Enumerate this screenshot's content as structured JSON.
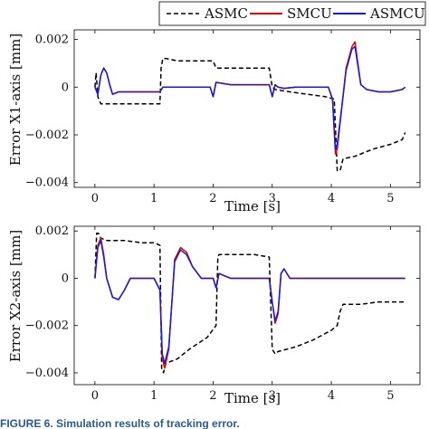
{
  "chart_data": [
    {
      "type": "line",
      "ylabel": "Error X1-axis [mm]",
      "xlabel": "Time [s]",
      "xlim": [
        -0.35,
        5.5
      ],
      "ylim": [
        -0.0042,
        0.0024
      ],
      "x_ticks": [
        "0",
        "1",
        "2",
        "3",
        "4",
        "5"
      ],
      "y_ticks": [
        "0.002",
        "0",
        "−0.002",
        "−0.004"
      ],
      "legend": {
        "placement": "top-right, above plot",
        "entries": [
          "ASMC",
          "SMCU",
          "ASMCU"
        ]
      },
      "series": [
        {
          "name": "ASMC",
          "color": "#000000",
          "style": "dashed",
          "x": [
            0.0,
            0.02,
            0.05,
            0.1,
            0.3,
            0.6,
            0.9,
            1.1,
            1.12,
            1.15,
            1.2,
            1.4,
            1.6,
            1.9,
            2.0,
            2.05,
            2.1,
            2.4,
            2.7,
            2.95,
            3.0,
            3.05,
            3.3,
            3.6,
            3.9,
            4.05,
            4.1,
            4.15,
            4.2,
            4.4,
            4.7,
            5.0,
            5.2,
            5.25
          ],
          "y": [
            0.0,
            0.0006,
            -0.0004,
            -0.0007,
            -0.0007,
            -0.0007,
            -0.0007,
            -0.0007,
            0.0008,
            0.0012,
            0.0012,
            0.0011,
            0.0011,
            0.0011,
            0.0011,
            0.0008,
            0.0008,
            0.0008,
            0.0008,
            0.0008,
            0.0,
            -0.0001,
            -0.0002,
            -0.0003,
            -0.0004,
            -0.0005,
            -0.0035,
            -0.0035,
            -0.003,
            -0.0029,
            -0.0026,
            -0.0024,
            -0.0022,
            -0.0019
          ]
        },
        {
          "name": "SMCU",
          "color": "#e00000",
          "style": "solid",
          "x": [
            0.0,
            0.05,
            0.1,
            0.15,
            0.2,
            0.25,
            0.3,
            0.4,
            0.6,
            0.9,
            1.1,
            1.15,
            1.3,
            1.6,
            1.95,
            2.0,
            2.05,
            2.3,
            2.7,
            2.95,
            3.0,
            3.05,
            3.1,
            3.2,
            3.4,
            3.7,
            3.95,
            4.02,
            4.07,
            4.1,
            4.15,
            4.25,
            4.35,
            4.4,
            4.45,
            4.5,
            4.6,
            4.8,
            5.0,
            5.2,
            5.25
          ],
          "y": [
            0.0,
            -0.0003,
            0.0005,
            0.0008,
            0.0006,
            0.0001,
            -0.0003,
            -0.0002,
            -0.0002,
            -0.0002,
            -0.0002,
            0.0,
            0.0,
            0.0,
            0.0,
            -0.0004,
            0.0002,
            0.0001,
            0.0001,
            0.0001,
            -0.0004,
            0.0001,
            0.0,
            -5e-05,
            0.0,
            0.0,
            0.0,
            -0.0005,
            -0.0028,
            -0.0026,
            -0.0015,
            0.0008,
            0.0017,
            0.0019,
            0.001,
            0.0001,
            -0.0001,
            -0.0002,
            -0.0002,
            -0.0001,
            0.0
          ]
        },
        {
          "name": "ASMCU",
          "color": "#1a1adc",
          "style": "solid",
          "x": [
            0.0,
            0.05,
            0.1,
            0.15,
            0.2,
            0.25,
            0.3,
            0.4,
            0.6,
            0.9,
            1.1,
            1.15,
            1.3,
            1.6,
            1.95,
            2.0,
            2.05,
            2.3,
            2.7,
            2.95,
            3.0,
            3.05,
            3.1,
            3.2,
            3.4,
            3.7,
            3.95,
            4.02,
            4.07,
            4.1,
            4.15,
            4.25,
            4.35,
            4.4,
            4.45,
            4.5,
            4.6,
            4.8,
            5.0,
            5.2,
            5.25
          ],
          "y": [
            0.0,
            -0.0003,
            0.0005,
            0.0008,
            0.0006,
            0.0001,
            -0.0003,
            -0.0002,
            -0.0002,
            -0.0002,
            -0.0002,
            0.0,
            0.0,
            0.0,
            0.0,
            -0.0004,
            0.0002,
            0.0001,
            0.0001,
            0.0001,
            -0.0004,
            0.0001,
            0.0,
            -5e-05,
            0.0,
            0.0,
            0.0,
            -0.0005,
            -0.0026,
            -0.0024,
            -0.0014,
            0.0007,
            0.0016,
            0.0017,
            0.0009,
            0.0001,
            -0.0001,
            -0.0002,
            -0.0002,
            -0.0001,
            0.0
          ]
        }
      ]
    },
    {
      "type": "line",
      "ylabel": "Error X2-axis [mm]",
      "xlabel": "Time [s]",
      "xlim": [
        -0.35,
        5.5
      ],
      "ylim": [
        -0.0045,
        0.0022
      ],
      "x_ticks": [
        "0",
        "1",
        "2",
        "3",
        "4",
        "5"
      ],
      "y_ticks": [
        "0.002",
        "0",
        "−0.002",
        "−0.004"
      ],
      "series": [
        {
          "name": "ASMC",
          "color": "#000000",
          "style": "dashed",
          "x": [
            0.0,
            0.03,
            0.06,
            0.1,
            0.2,
            0.5,
            0.8,
            1.0,
            1.1,
            1.13,
            1.16,
            1.2,
            1.4,
            1.6,
            1.9,
            2.05,
            2.08,
            2.1,
            2.4,
            2.7,
            2.95,
            3.0,
            3.05,
            3.1,
            3.4,
            3.7,
            4.0,
            4.1,
            4.15,
            4.2,
            4.5,
            4.8,
            5.0,
            5.25
          ],
          "y": [
            0.0,
            0.0019,
            0.0019,
            0.0017,
            0.0016,
            0.0016,
            0.0015,
            0.0015,
            0.0014,
            -0.0038,
            -0.004,
            -0.0036,
            -0.0034,
            -0.003,
            -0.0025,
            -0.002,
            0.0009,
            0.001,
            0.001,
            0.001,
            0.0009,
            -0.003,
            -0.0032,
            -0.0031,
            -0.0029,
            -0.0026,
            -0.0022,
            -0.002,
            -0.0014,
            -0.0011,
            -0.0011,
            -0.001,
            -0.001,
            -0.001
          ]
        },
        {
          "name": "SMCU",
          "color": "#e00000",
          "style": "solid",
          "x": [
            0.0,
            0.05,
            0.1,
            0.15,
            0.2,
            0.3,
            0.4,
            0.5,
            0.6,
            0.8,
            1.0,
            1.1,
            1.14,
            1.18,
            1.25,
            1.35,
            1.45,
            1.55,
            1.65,
            1.8,
            2.0,
            2.05,
            2.1,
            2.3,
            2.6,
            2.95,
            3.0,
            3.05,
            3.1,
            3.15,
            3.2,
            3.3,
            3.5,
            3.8,
            4.0,
            4.1,
            4.2,
            4.6,
            5.0,
            5.25
          ],
          "y": [
            0.0,
            0.0014,
            0.0017,
            0.001,
            0.0,
            -0.0008,
            -0.0009,
            -0.0005,
            0.0,
            0.0,
            0.0,
            -0.0005,
            -0.0034,
            -0.0038,
            -0.003,
            0.0008,
            0.0013,
            0.0011,
            0.0005,
            0.0,
            0.0,
            -0.0004,
            0.0002,
            0.0,
            0.0,
            0.0,
            -0.001,
            -0.0019,
            -0.0015,
            0.0002,
            0.0004,
            0.0,
            0.0,
            0.0,
            0.0,
            0.0,
            0.0,
            0.0,
            0.0,
            0.0
          ]
        },
        {
          "name": "ASMCU",
          "color": "#1a1adc",
          "style": "solid",
          "x": [
            0.0,
            0.05,
            0.1,
            0.15,
            0.2,
            0.3,
            0.4,
            0.5,
            0.6,
            0.8,
            1.0,
            1.1,
            1.14,
            1.18,
            1.25,
            1.35,
            1.45,
            1.55,
            1.65,
            1.8,
            2.0,
            2.05,
            2.1,
            2.3,
            2.6,
            2.95,
            3.0,
            3.05,
            3.1,
            3.15,
            3.2,
            3.3,
            3.5,
            3.8,
            4.0,
            4.1,
            4.2,
            4.6,
            5.0,
            5.25
          ],
          "y": [
            0.0,
            0.0013,
            0.0016,
            0.0009,
            0.0,
            -0.0008,
            -0.0009,
            -0.0005,
            0.0,
            0.0,
            0.0,
            -0.0005,
            -0.0032,
            -0.0036,
            -0.0029,
            0.0007,
            0.0012,
            0.001,
            0.0005,
            0.0,
            0.0,
            -0.0004,
            0.0002,
            0.0,
            0.0,
            0.0,
            -0.001,
            -0.0018,
            -0.0014,
            0.0002,
            0.0004,
            0.0,
            0.0,
            0.0,
            0.0,
            0.0,
            0.0,
            0.0,
            0.0,
            0.0
          ]
        }
      ]
    }
  ],
  "caption": "FIGURE 6.  Simulation results of tracking error."
}
